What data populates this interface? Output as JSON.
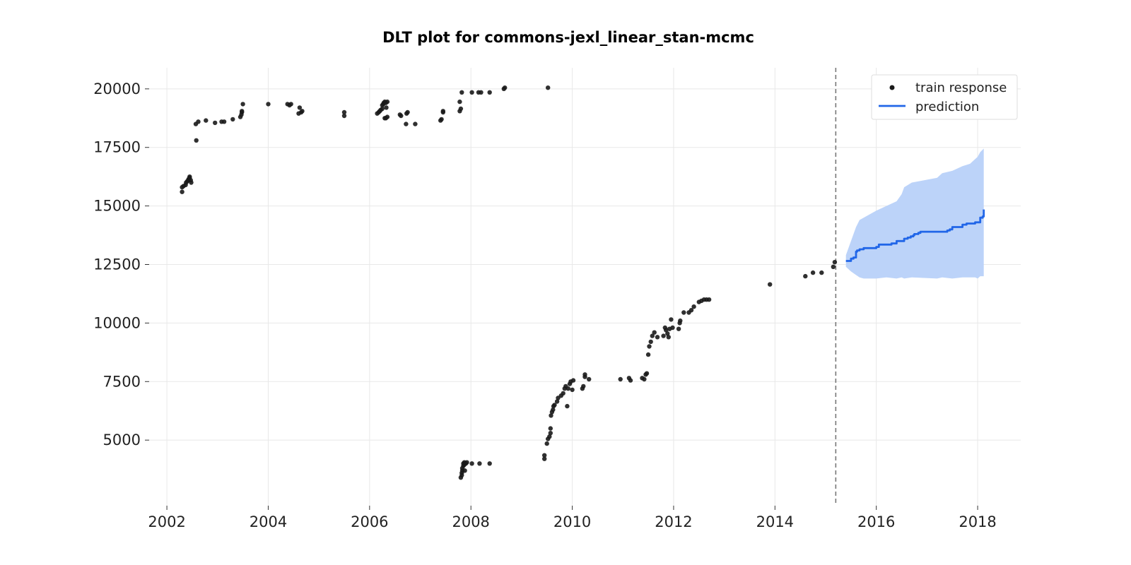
{
  "chart_data": {
    "type": "scatter",
    "title": "DLT plot for commons-jexl_linear_stan-mcmc",
    "xlabel": "",
    "ylabel": "",
    "xlim": [
      2001.65,
      2018.85
    ],
    "ylim": [
      2200,
      20900
    ],
    "x_ticks": [
      2002,
      2004,
      2006,
      2008,
      2010,
      2012,
      2014,
      2016,
      2018
    ],
    "y_ticks": [
      5000,
      7500,
      10000,
      12500,
      15000,
      17500,
      20000
    ],
    "grid": true,
    "legend_position": "top-right",
    "split_line_x": 2015.2,
    "colors": {
      "points": "#1a1a1a",
      "prediction": "#2166e8",
      "band": "#bcd3f9",
      "split_line": "#777777"
    },
    "series": [
      {
        "name": "train response",
        "kind": "scatter",
        "x": [
          2002.3,
          2002.3,
          2002.33,
          2002.37,
          2002.38,
          2002.4,
          2002.42,
          2002.43,
          2002.45,
          2002.45,
          2002.47,
          2002.48,
          2002.57,
          2002.58,
          2002.62,
          2002.77,
          2002.95,
          2003.08,
          2003.13,
          2003.3,
          2003.45,
          2003.47,
          2003.48,
          2003.48,
          2003.5,
          2004.0,
          2004.38,
          2004.42,
          2004.45,
          2004.6,
          2004.62,
          2004.65,
          2004.67,
          2005.5,
          2005.5,
          2006.15,
          2006.18,
          2006.2,
          2006.22,
          2006.25,
          2006.25,
          2006.27,
          2006.28,
          2006.3,
          2006.3,
          2006.32,
          2006.32,
          2006.33,
          2006.35,
          2006.35,
          2006.6,
          2006.62,
          2006.72,
          2006.73,
          2006.75,
          2006.9,
          2007.4,
          2007.42,
          2007.45,
          2007.45,
          2007.78,
          2007.78,
          2007.8,
          2007.82,
          2007.8,
          2007.82,
          2007.82,
          2007.83,
          2007.83,
          2007.85,
          2007.85,
          2007.87,
          2007.87,
          2007.88,
          2007.9,
          2007.92,
          2008.02,
          2008.02,
          2008.15,
          2008.17,
          2008.2,
          2008.37,
          2008.37,
          2008.65,
          2008.67,
          2009.52,
          2009.45,
          2009.45,
          2009.5,
          2009.52,
          2009.55,
          2009.57,
          2009.57,
          2009.58,
          2009.6,
          2009.62,
          2009.63,
          2009.65,
          2009.7,
          2009.72,
          2009.78,
          2009.82,
          2009.85,
          2009.87,
          2009.9,
          2009.92,
          2009.95,
          2009.97,
          2010.0,
          2010.02,
          2010.2,
          2010.22,
          2010.25,
          2010.25,
          2010.33,
          2010.95,
          2011.12,
          2011.15,
          2011.38,
          2011.42,
          2011.45,
          2011.47,
          2011.5,
          2011.52,
          2011.55,
          2011.58,
          2011.62,
          2011.68,
          2011.8,
          2011.83,
          2011.85,
          2011.88,
          2011.9,
          2011.92,
          2011.95,
          2011.98,
          2012.1,
          2012.12,
          2012.13,
          2012.2,
          2012.3,
          2012.35,
          2012.4,
          2012.5,
          2012.55,
          2012.6,
          2012.65,
          2012.7,
          2013.9,
          2014.6,
          2014.75,
          2014.92,
          2015.15,
          2015.18
        ],
        "y": [
          15600,
          15800,
          15850,
          15900,
          16000,
          16050,
          16100,
          16150,
          16200,
          16250,
          16100,
          16000,
          18500,
          17800,
          18600,
          18650,
          18550,
          18600,
          18600,
          18700,
          18800,
          18900,
          19000,
          19050,
          19350,
          19350,
          19350,
          19300,
          19350,
          18950,
          19200,
          19000,
          19050,
          18850,
          19000,
          18950,
          19000,
          19050,
          19100,
          19150,
          19300,
          19350,
          19400,
          19450,
          18750,
          19400,
          18750,
          19200,
          19450,
          18800,
          18900,
          18850,
          18500,
          18950,
          19000,
          18500,
          18650,
          18700,
          19050,
          19000,
          19050,
          19450,
          19150,
          19850,
          3400,
          3500,
          3600,
          3700,
          3800,
          3900,
          4000,
          4050,
          3950,
          3700,
          4000,
          4050,
          4000,
          19850,
          19850,
          4000,
          19850,
          19850,
          4000,
          20000,
          20050,
          20050,
          4200,
          4350,
          4850,
          5050,
          5150,
          5300,
          5500,
          6050,
          6200,
          6300,
          6450,
          6500,
          6650,
          6800,
          6900,
          7000,
          7200,
          7300,
          6450,
          7200,
          7400,
          7500,
          7150,
          7550,
          7200,
          7300,
          7700,
          7800,
          7600,
          7600,
          7650,
          7550,
          7650,
          7600,
          7800,
          7850,
          8650,
          9000,
          9200,
          9450,
          9600,
          9400,
          9450,
          9800,
          9700,
          9550,
          9400,
          9750,
          10150,
          9800,
          9750,
          10000,
          10100,
          10450,
          10450,
          10550,
          10700,
          10900,
          10950,
          11000,
          11000,
          11000,
          11650,
          12000,
          12150,
          12150,
          12400,
          12600
        ]
      },
      {
        "name": "prediction",
        "kind": "line",
        "x": [
          2015.4,
          2015.5,
          2015.55,
          2015.6,
          2015.62,
          2015.67,
          2015.75,
          2016.0,
          2016.05,
          2016.3,
          2016.4,
          2016.55,
          2016.62,
          2016.68,
          2016.73,
          2016.75,
          2016.83,
          2016.87,
          2017.4,
          2017.45,
          2017.5,
          2017.55,
          2017.6,
          2017.65,
          2017.7,
          2017.78,
          2017.95,
          2018.05,
          2018.1,
          2018.12
        ],
        "y": [
          12650,
          12750,
          12800,
          13050,
          13100,
          13150,
          13200,
          13250,
          13350,
          13400,
          13500,
          13600,
          13650,
          13700,
          13750,
          13800,
          13850,
          13900,
          13950,
          14000,
          14100,
          14100,
          14100,
          14100,
          14200,
          14250,
          14300,
          14500,
          14550,
          14850
        ]
      },
      {
        "name": "",
        "kind": "band",
        "x": [
          2015.4,
          2015.5,
          2015.6,
          2015.67,
          2015.75,
          2016.0,
          2016.2,
          2016.4,
          2016.5,
          2016.55,
          2016.7,
          2017.2,
          2017.3,
          2017.5,
          2017.7,
          2017.85,
          2017.95,
          2018.0,
          2018.05,
          2018.12
        ],
        "upper": [
          12900,
          13500,
          14100,
          14400,
          14500,
          14800,
          15000,
          15200,
          15500,
          15800,
          16000,
          16200,
          16400,
          16500,
          16700,
          16800,
          17000,
          17100,
          17300,
          17450
        ],
        "lower": [
          12400,
          12200,
          12050,
          11950,
          11900,
          11900,
          11950,
          11900,
          11950,
          11900,
          11950,
          11900,
          11950,
          11900,
          11950,
          11950,
          11950,
          11900,
          12000,
          12000
        ]
      }
    ]
  }
}
